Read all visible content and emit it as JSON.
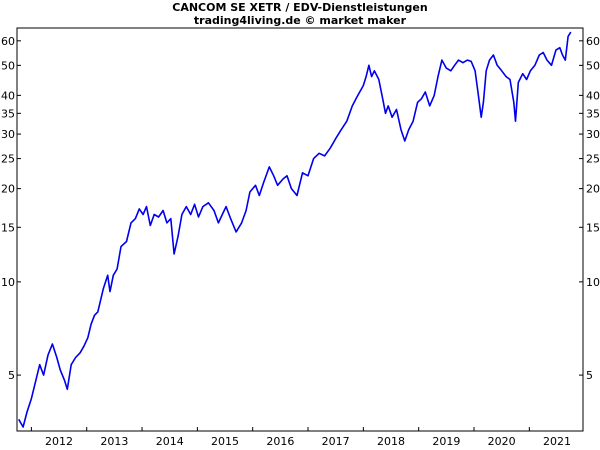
{
  "chart_data": {
    "type": "line",
    "title": "CANCOM SE XETR / EDV-Dienstleistungen",
    "subtitle": "trading4living.de © market maker",
    "xlabel": "",
    "ylabel": "",
    "y_scale": "log",
    "ylim": [
      3.3,
      66
    ],
    "xlim": [
      2011.74,
      2021.97
    ],
    "y_ticks": [
      5,
      10,
      15,
      20,
      25,
      30,
      35,
      40,
      50,
      60
    ],
    "x_ticks": [
      "2012",
      "2013",
      "2014",
      "2015",
      "2016",
      "2017",
      "2018",
      "2019",
      "2020",
      "2021"
    ],
    "grid": false,
    "series": [
      {
        "color": "#0000ee",
        "x": [
          2011.77,
          2011.85,
          2011.92,
          2012.0,
          2012.08,
          2012.15,
          2012.22,
          2012.3,
          2012.38,
          2012.46,
          2012.52,
          2012.6,
          2012.65,
          2012.72,
          2012.8,
          2012.88,
          2012.95,
          2013.02,
          2013.08,
          2013.14,
          2013.2,
          2013.3,
          2013.38,
          2013.42,
          2013.48,
          2013.55,
          2013.62,
          2013.72,
          2013.8,
          2013.88,
          2013.95,
          2014.02,
          2014.08,
          2014.15,
          2014.22,
          2014.3,
          2014.38,
          2014.45,
          2014.52,
          2014.58,
          2014.65,
          2014.72,
          2014.8,
          2014.88,
          2014.95,
          2015.02,
          2015.1,
          2015.2,
          2015.3,
          2015.38,
          2015.45,
          2015.52,
          2015.6,
          2015.7,
          2015.8,
          2015.88,
          2015.95,
          2016.05,
          2016.12,
          2016.2,
          2016.3,
          2016.38,
          2016.45,
          2016.55,
          2016.62,
          2016.7,
          2016.8,
          2016.9,
          2017.0,
          2017.1,
          2017.2,
          2017.3,
          2017.4,
          2017.5,
          2017.6,
          2017.7,
          2017.8,
          2017.9,
          2018.0,
          2018.05,
          2018.1,
          2018.15,
          2018.2,
          2018.28,
          2018.35,
          2018.4,
          2018.45,
          2018.52,
          2018.6,
          2018.68,
          2018.75,
          2018.82,
          2018.9,
          2018.98,
          2019.05,
          2019.12,
          2019.2,
          2019.28,
          2019.35,
          2019.42,
          2019.5,
          2019.58,
          2019.65,
          2019.72,
          2019.8,
          2019.88,
          2019.95,
          2020.02,
          2020.08,
          2020.13,
          2020.17,
          2020.22,
          2020.28,
          2020.35,
          2020.42,
          2020.5,
          2020.58,
          2020.65,
          2020.72,
          2020.75,
          2020.8,
          2020.88,
          2020.95,
          2021.02,
          2021.1,
          2021.18,
          2021.25,
          2021.32,
          2021.4,
          2021.48,
          2021.55,
          2021.6,
          2021.65,
          2021.7,
          2021.75
        ],
        "values": [
          3.6,
          3.4,
          3.8,
          4.2,
          4.8,
          5.4,
          5.0,
          5.8,
          6.3,
          5.7,
          5.2,
          4.8,
          4.5,
          5.4,
          5.7,
          5.9,
          6.2,
          6.6,
          7.3,
          7.8,
          8.0,
          9.5,
          10.5,
          9.3,
          10.5,
          11.0,
          13.0,
          13.5,
          15.5,
          16.0,
          17.2,
          16.5,
          17.5,
          15.2,
          16.5,
          16.2,
          17.0,
          15.5,
          16.0,
          12.3,
          14.0,
          16.5,
          17.5,
          16.5,
          17.8,
          16.2,
          17.5,
          18.0,
          17.0,
          15.5,
          16.5,
          17.5,
          16.0,
          14.5,
          15.5,
          17.0,
          19.5,
          20.5,
          19.0,
          21.0,
          23.5,
          22.0,
          20.5,
          21.5,
          22.0,
          20.0,
          19.0,
          22.5,
          22.0,
          25.0,
          26.0,
          25.5,
          27.0,
          29.0,
          31.0,
          33.0,
          37.0,
          40.0,
          43.0,
          46.0,
          50.0,
          46.0,
          48.0,
          45.0,
          39.0,
          35.0,
          37.0,
          34.0,
          36.0,
          31.0,
          28.5,
          31.0,
          33.0,
          38.0,
          39.0,
          41.0,
          37.0,
          40.0,
          46.0,
          52.0,
          49.0,
          48.0,
          50.0,
          52.0,
          51.0,
          52.0,
          51.5,
          48.0,
          40.0,
          34.0,
          38.0,
          48.0,
          52.0,
          54.0,
          50.0,
          48.0,
          46.0,
          45.0,
          38.0,
          33.0,
          44.0,
          47.0,
          45.0,
          48.0,
          50.0,
          54.0,
          55.0,
          52.0,
          50.0,
          56.0,
          57.0,
          54.0,
          52.0,
          62.0,
          64.0
        ]
      }
    ]
  }
}
